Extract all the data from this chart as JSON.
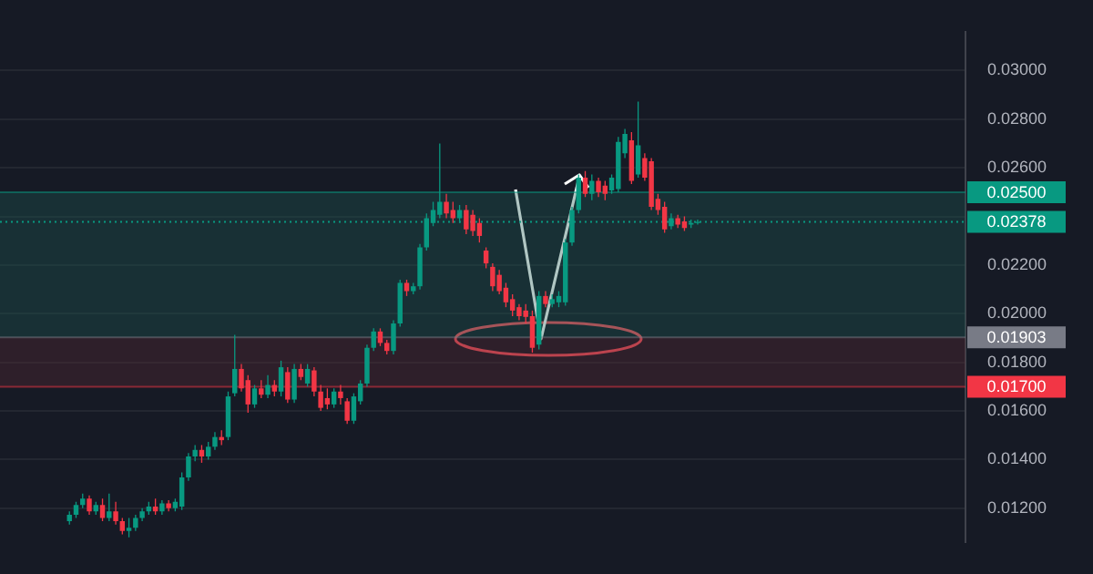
{
  "chart_data": {
    "type": "candlestick",
    "categories": [
      null,
      null,
      null,
      null,
      null,
      null,
      null,
      null,
      null,
      null,
      null,
      null,
      null,
      null,
      null,
      null,
      null,
      null,
      null,
      null,
      null,
      null,
      null,
      null,
      null,
      null,
      null,
      null,
      null,
      null,
      null,
      null,
      null,
      null,
      null,
      null,
      null,
      null,
      null,
      null,
      null,
      null,
      null,
      null,
      null,
      null,
      null,
      null,
      null,
      null,
      null,
      null,
      null,
      null,
      null,
      null,
      null,
      null,
      null,
      null,
      null,
      null,
      null,
      null,
      null,
      null,
      null,
      null,
      null,
      null,
      null,
      null,
      null,
      null,
      null,
      null,
      null,
      null,
      null,
      null,
      null,
      null,
      null,
      null,
      null,
      null,
      null,
      null,
      null,
      null,
      null,
      null,
      null,
      null,
      null,
      null,
      null,
      null,
      null,
      null,
      null,
      null,
      null,
      null,
      null,
      null,
      null,
      null,
      null,
      null,
      null,
      null,
      null,
      null,
      null,
      null,
      null,
      null,
      null,
      null,
      null,
      null,
      null,
      null,
      null,
      null,
      null,
      null,
      null,
      null,
      null,
      null,
      null,
      null,
      null,
      null,
      null,
      null,
      null,
      null,
      null,
      null,
      null,
      null,
      null,
      null
    ],
    "ohlc": [
      null,
      null,
      null,
      null,
      null,
      null,
      null,
      null,
      null,
      null,
      [
        0.01147,
        0.01187,
        0.01133,
        0.01173
      ],
      [
        0.01173,
        0.01227,
        0.0116,
        0.01213
      ],
      [
        0.01213,
        0.0126,
        0.012,
        0.0124
      ],
      [
        0.0124,
        0.01253,
        0.01173,
        0.01187
      ],
      [
        0.01187,
        0.01227,
        0.01173,
        0.01213
      ],
      [
        0.01213,
        0.0124,
        0.01147,
        0.0116
      ],
      [
        0.0116,
        0.0126,
        0.01147,
        0.01187
      ],
      [
        0.01187,
        0.01227,
        0.01133,
        0.01147
      ],
      [
        0.01147,
        0.0116,
        0.01093,
        0.01107
      ],
      [
        0.01107,
        0.0116,
        0.0108,
        0.0112
      ],
      [
        0.0112,
        0.01173,
        0.01107,
        0.0116
      ],
      [
        0.0116,
        0.012,
        0.01147,
        0.01187
      ],
      [
        0.01187,
        0.01227,
        0.01173,
        0.01207
      ],
      [
        0.01207,
        0.0124,
        0.01173,
        0.01187
      ],
      [
        0.01187,
        0.01233,
        0.01173,
        0.0122
      ],
      [
        0.0122,
        0.01233,
        0.01187,
        0.012
      ],
      [
        0.012,
        0.0124,
        0.01187,
        0.01227
      ],
      [
        0.01207,
        0.01347,
        0.01193,
        0.01327
      ],
      [
        0.01327,
        0.01427,
        0.01313,
        0.01413
      ],
      [
        0.01413,
        0.0146,
        0.01393,
        0.0144
      ],
      [
        0.0144,
        0.0146,
        0.01387,
        0.01413
      ],
      [
        0.01413,
        0.01473,
        0.014,
        0.01453
      ],
      [
        0.01453,
        0.01513,
        0.0144,
        0.01493
      ],
      [
        0.01493,
        0.01521,
        0.0146,
        0.0148
      ],
      [
        0.01493,
        0.0168,
        0.0148,
        0.0166
      ],
      [
        0.01673,
        0.01913,
        0.0166,
        0.01773
      ],
      [
        0.01773,
        0.01793,
        0.0168,
        0.01693
      ],
      [
        0.01727,
        0.01747,
        0.01593,
        0.01627
      ],
      [
        0.01627,
        0.01707,
        0.01613,
        0.01693
      ],
      [
        0.01693,
        0.01727,
        0.01653,
        0.01667
      ],
      [
        0.01667,
        0.01747,
        0.01653,
        0.01707
      ],
      [
        0.01707,
        0.01727,
        0.0166,
        0.0168
      ],
      [
        0.0168,
        0.01807,
        0.0166,
        0.0178
      ],
      [
        0.0176,
        0.0178,
        0.01633,
        0.01647
      ],
      [
        0.01647,
        0.01793,
        0.01633,
        0.01773
      ],
      [
        0.01773,
        0.01793,
        0.01727,
        0.0174
      ],
      [
        0.01713,
        0.01793,
        0.017,
        0.01773
      ],
      [
        0.01767,
        0.0178,
        0.0166,
        0.0168
      ],
      [
        0.0168,
        0.01707,
        0.016,
        0.01613
      ],
      [
        0.01653,
        0.01693,
        0.01607,
        0.01627
      ],
      [
        0.01627,
        0.01693,
        0.01613,
        0.0168
      ],
      [
        0.0168,
        0.01707,
        0.01627,
        0.01653
      ],
      [
        0.0164,
        0.01653,
        0.01547,
        0.0156
      ],
      [
        0.0156,
        0.01673,
        0.01547,
        0.0166
      ],
      [
        0.0164,
        0.01727,
        0.01627,
        0.01713
      ],
      [
        0.01713,
        0.01873,
        0.017,
        0.0186
      ],
      [
        0.0186,
        0.0194,
        0.01847,
        0.01927
      ],
      [
        0.01927,
        0.0194,
        0.01867,
        0.0188
      ],
      [
        0.0188,
        0.01893,
        0.01833,
        0.01847
      ],
      [
        0.01847,
        0.01973,
        0.01833,
        0.0196
      ],
      [
        0.0196,
        0.0214,
        0.01947,
        0.02127
      ],
      [
        0.02127,
        0.0214,
        0.02073,
        0.02093
      ],
      [
        0.02093,
        0.02127,
        0.0208,
        0.02113
      ],
      [
        0.02113,
        0.02287,
        0.021,
        0.02273
      ],
      [
        0.02273,
        0.02413,
        0.0226,
        0.02393
      ],
      [
        0.02373,
        0.0246,
        0.0236,
        0.02427
      ],
      [
        0.02407,
        0.027,
        0.02393,
        0.0246
      ],
      [
        0.0246,
        0.02493,
        0.02393,
        0.02413
      ],
      [
        0.02427,
        0.0246,
        0.02373,
        0.02393
      ],
      [
        0.02393,
        0.02447,
        0.02373,
        0.02427
      ],
      [
        0.02427,
        0.02447,
        0.02327,
        0.02347
      ],
      [
        0.02407,
        0.02427,
        0.0232,
        0.0234
      ],
      [
        0.02373,
        0.02393,
        0.02293,
        0.0232
      ],
      [
        0.0226,
        0.02273,
        0.02187,
        0.02207
      ],
      [
        0.02193,
        0.02207,
        0.02093,
        0.02113
      ],
      [
        0.0216,
        0.0218,
        0.0208,
        0.02093
      ],
      [
        0.02107,
        0.02127,
        0.02027,
        0.02047
      ],
      [
        0.0206,
        0.0208,
        0.0199,
        0.02013
      ],
      [
        0.02027,
        0.0204,
        0.01973,
        0.0199
      ],
      [
        0.02013,
        0.0204,
        0.0196,
        0.01987
      ],
      [
        0.0199,
        0.02013,
        0.0184,
        0.0186
      ],
      [
        0.01873,
        0.02093,
        0.01853,
        0.02073
      ],
      [
        0.02073,
        0.02093,
        0.02027,
        0.0204
      ],
      [
        0.0204,
        0.0208,
        0.02027,
        0.0206
      ],
      [
        0.02047,
        0.02093,
        0.02027,
        0.02073
      ],
      [
        0.02047,
        0.02307,
        0.02033,
        0.02293
      ],
      [
        0.02293,
        0.0244,
        0.0228,
        0.02427
      ],
      [
        0.02427,
        0.02573,
        0.02413,
        0.0256
      ],
      [
        0.0256,
        0.02587,
        0.0248,
        0.02493
      ],
      [
        0.02493,
        0.02573,
        0.02467,
        0.02547
      ],
      [
        0.02547,
        0.0256,
        0.0248,
        0.025
      ],
      [
        0.02527,
        0.02547,
        0.02467,
        0.02493
      ],
      [
        0.02507,
        0.02573,
        0.02493,
        0.0256
      ],
      [
        0.02513,
        0.02727,
        0.025,
        0.02707
      ],
      [
        0.0266,
        0.0276,
        0.0264,
        0.0274
      ],
      [
        0.02713,
        0.02747,
        0.02533,
        0.02547
      ],
      [
        0.02573,
        0.02873,
        0.0256,
        0.02693
      ],
      [
        0.0264,
        0.0266,
        0.02547,
        0.0256
      ],
      [
        0.02627,
        0.0264,
        0.02427,
        0.0244
      ],
      [
        0.02473,
        0.02493,
        0.02407,
        0.02427
      ],
      [
        0.0244,
        0.0246,
        0.02333,
        0.02347
      ],
      [
        0.0236,
        0.02413,
        0.02347,
        0.02393
      ],
      [
        0.02393,
        0.02407,
        0.02353,
        0.02367
      ],
      [
        0.0238,
        0.024,
        0.0234,
        0.02353
      ],
      [
        0.02367,
        0.02387,
        0.02353,
        0.02373
      ],
      [
        0.02373,
        0.02387,
        0.02367,
        0.02378
      ],
      null,
      null,
      null,
      null,
      null,
      null,
      null,
      null,
      null,
      null,
      null,
      null,
      null,
      null,
      null,
      null,
      null,
      null,
      null,
      null,
      null,
      null,
      null,
      null,
      null,
      null,
      null,
      null,
      null,
      null,
      null,
      null,
      null,
      null,
      null,
      null,
      null,
      null,
      null,
      null
    ],
    "ylim": [
      0.0106,
      0.0316
    ],
    "yticks": [
      {
        "value": 0.012,
        "label": "0.01200"
      },
      {
        "value": 0.014,
        "label": "0.01400"
      },
      {
        "value": 0.016,
        "label": "0.01600"
      },
      {
        "value": 0.018,
        "label": "0.01800"
      },
      {
        "value": 0.02,
        "label": "0.02000"
      },
      {
        "value": 0.022,
        "label": "0.02200"
      },
      {
        "value": 0.024,
        "label": null
      },
      {
        "value": 0.026,
        "label": "0.02600"
      },
      {
        "value": 0.028,
        "label": "0.02800"
      },
      {
        "value": 0.03,
        "label": "0.03000"
      }
    ],
    "tick_labels": "y",
    "grid": "y",
    "ref_lines": [
      {
        "axis": "y",
        "value": 0.025,
        "label": "0.02500",
        "color": "#089981"
      },
      {
        "axis": "y",
        "value": 0.02378,
        "label": "0.02378",
        "color": "#089981",
        "line_style": "dotted"
      },
      {
        "axis": "y",
        "value": 0.01903,
        "label": "0.01903",
        "color": "#787b86"
      },
      {
        "axis": "y",
        "value": 0.017,
        "label": "0.01700",
        "color": "#f23645"
      }
    ],
    "bands": [
      {
        "axis": "y",
        "from": 0.01903,
        "to": 0.025,
        "color": "#1c5b52"
      },
      {
        "axis": "y",
        "from": 0.017,
        "to": 0.01903,
        "color": "#5c2a33"
      }
    ]
  }
}
